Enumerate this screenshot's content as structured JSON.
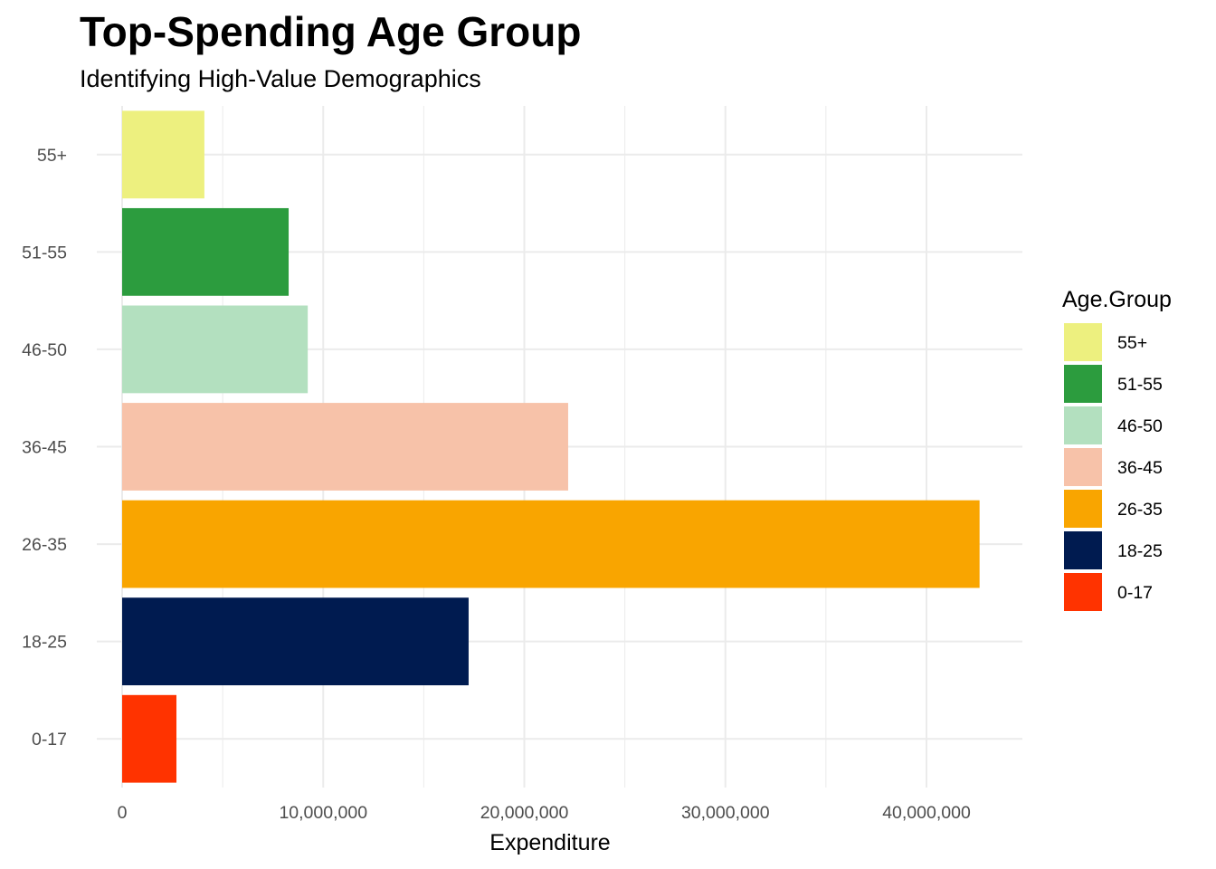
{
  "chart_data": {
    "type": "bar",
    "orientation": "horizontal",
    "title": "Top-Spending Age Group",
    "subtitle": "Identifying High-Value Demographics",
    "xlabel": "Expenditure",
    "ylabel": "",
    "categories": [
      "0-17",
      "18-25",
      "26-35",
      "36-45",
      "46-50",
      "51-55",
      "55+"
    ],
    "values": [
      2700000,
      17230000,
      42640000,
      22180000,
      9230000,
      8280000,
      4090000
    ],
    "colors": {
      "0-17": "#FF3300",
      "18-25": "#001B50",
      "26-35": "#F9A500",
      "36-45": "#F7C2A9",
      "46-50": "#B3E0BF",
      "51-55": "#2C9C3E",
      "55+": "#EDF07F"
    },
    "xlim": [
      0,
      45000000
    ],
    "x_ticks": [
      0,
      10000000,
      20000000,
      30000000,
      40000000
    ],
    "x_tick_labels": [
      "0",
      "10,000,000",
      "20,000,000",
      "30,000,000",
      "40,000,000"
    ],
    "grid": true,
    "legend": {
      "title": "Age.Group",
      "position": "right",
      "entries": [
        "55+",
        "51-55",
        "46-50",
        "36-45",
        "26-35",
        "18-25",
        "0-17"
      ]
    }
  }
}
